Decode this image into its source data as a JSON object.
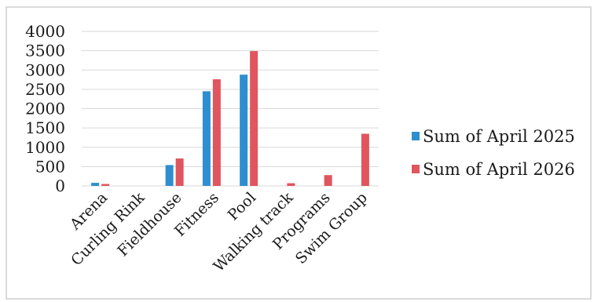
{
  "chart_data": {
    "type": "bar",
    "categories": [
      "Arena",
      "Curling Rink",
      "Fieldhouse",
      "Fitness",
      "Pool",
      "Walking track",
      "Programs",
      "Swim Group"
    ],
    "series": [
      {
        "name": "Sum of April 2025",
        "color": "#2e8fd0",
        "values": [
          80,
          0,
          540,
          2450,
          2880,
          0,
          0,
          0
        ]
      },
      {
        "name": "Sum of April 2026",
        "color": "#e0555e",
        "values": [
          50,
          0,
          710,
          2760,
          3490,
          70,
          280,
          1350
        ]
      }
    ],
    "yticks": [
      "0",
      "500",
      "1000",
      "1500",
      "2000",
      "2500",
      "3000",
      "3500",
      "4000"
    ],
    "ylim": [
      0,
      4000
    ],
    "grid": true,
    "legend_position": "right"
  }
}
